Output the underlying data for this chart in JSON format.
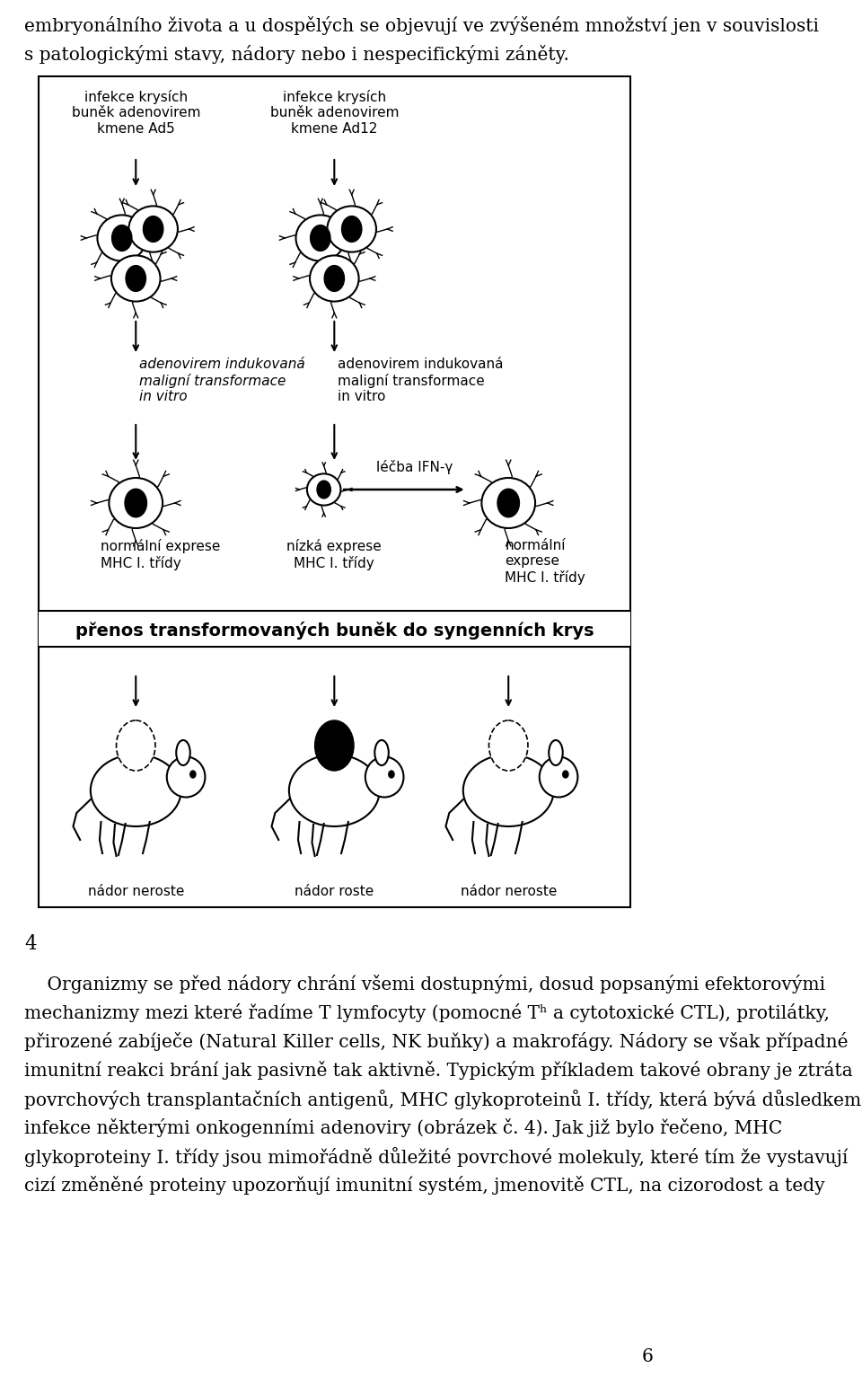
{
  "bg_color": "#ffffff",
  "top_text_line1": "embryonálního života a u dospělých se objevují ve zvýšeném množství jen v souvislosti",
  "top_text_line2": "s patologickými stavy, nádory nebo i nespecifickými záněty.",
  "fig_number": "4",
  "para_text": [
    "    Organizmy se před nádory chrání všemi dostupnými, dosud popsanými efektorovými",
    "mechanizmy mezi které řadíme T lymfocyty (pomocné Tʰ a cytotoxické CTL), protilátky,",
    "přirozené zabíječe (Natural Killer cells, NK buňky) a makrofágy. Nádory se však případné",
    "imunitní reakci brání jak pasivně tak aktivně. Typickým příkladem takové obrany je ztráta",
    "povrchových transplantačních antigenů, MHC glykoproteinů I. třídy, která bývá důsledkem",
    "infekce některými onkogenními adenoviry (obrázek č. 4). Jak již bylo řečeno, MHC",
    "glykoproteiny I. třídy jsou mimořádně důležité povrchové molekuly, které tím že vystavují",
    "cizí změněné proteiny upozorňují imunitní systém, jmenovitě CTL, na cizorodost a tedy"
  ],
  "para_text2": [
    "    Organizmy se před nádory chrání všemi dostupnými, dosud popsanými efektorovými",
    "mechanizmy mezi které řadíme T lymfocyty (pomocné T",
    " a cytotoxické CTL), protilátky,",
    "přirozené zabíječe (Natural Killer cells, NK buňky) a makrofágy. Nádory se však případné",
    "imunitní reakci brání jak pasivně tak aktivně. Typickým příkladem takové obrany je ztráta",
    "povrchových transplantačních antigenů, MHC glykoproteinů I. třídy, která bývá důsledkem",
    "infekce některými onkogenními adenoviry (obrázek č. 4). Jak již bylo řečeno, MHC",
    "glykoproteiny I. třídy jsou mimořádně důležité povrchové molekuly, které tím že vystavují",
    "cizí změněné proteiny upozorňují imunitní systém, jmenovitě CTL, na cizorodost a tedy"
  ],
  "page_number": "6",
  "diagram_labels": {
    "col1_top": "infekce krysích\nbuněk adenovirem\nkmene Ad5",
    "col2_top": "infekce krysích\nbuněk adenovirem\nkmene Ad12",
    "col1_mid": "adenovirem indukovaná\nmaligní transformace\nin vitro",
    "col2_mid": "adenovirem indukovaná\nmaligní transformace\nin vitro",
    "lecba": "léčba IFN-γ",
    "nizka": "nízká exprese\nMHC I. třídy",
    "col1_bot_label": "normální exprese\nMHC I. třídy",
    "col3_bot_label": "normální\nexprese\nMHC I. třídy",
    "transfer_text": "přenos transformovaných buněk do syngenních krys",
    "mouse1_label": "nádor neroste",
    "mouse2_label": "nádor roste",
    "mouse3_label": "nádor neroste"
  }
}
